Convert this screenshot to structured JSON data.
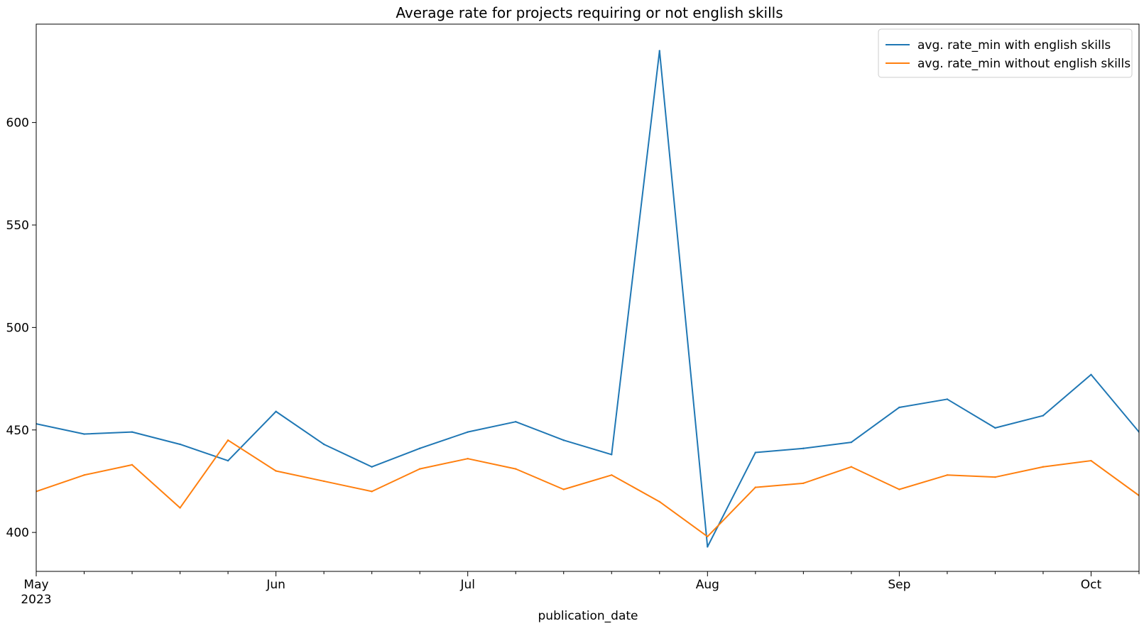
{
  "chart_data": {
    "type": "line",
    "title": "Average rate for projects requiring or not english skills",
    "xlabel": "publication_date",
    "ylabel": "",
    "x": [
      "2023-05-01",
      "2023-05-08",
      "2023-05-15",
      "2023-05-22",
      "2023-05-29",
      "2023-06-05",
      "2023-06-12",
      "2023-06-19",
      "2023-06-26",
      "2023-07-03",
      "2023-07-10",
      "2023-07-17",
      "2023-07-24",
      "2023-07-31",
      "2023-08-07",
      "2023-08-14",
      "2023-08-21",
      "2023-08-28",
      "2023-09-04",
      "2023-09-11",
      "2023-09-18",
      "2023-09-25",
      "2023-10-02",
      "2023-10-09"
    ],
    "xlim": [
      "2023-05-01",
      "2023-10-09"
    ],
    "ylim": [
      381,
      648
    ],
    "yticks": [
      400,
      450,
      500,
      550,
      600
    ],
    "xticks_major": [
      {
        "date": "2023-05-01",
        "label": "May",
        "sublabel": "2023"
      },
      {
        "date": "2023-06-05",
        "label": "Jun",
        "sublabel": ""
      },
      {
        "date": "2023-07-03",
        "label": "Jul",
        "sublabel": ""
      },
      {
        "date": "2023-08-07",
        "label": "Aug",
        "sublabel": ""
      },
      {
        "date": "2023-09-04",
        "label": "Sep",
        "sublabel": ""
      },
      {
        "date": "2023-10-02",
        "label": "Oct",
        "sublabel": ""
      }
    ],
    "xticks_minor": [
      "2023-05-08",
      "2023-05-15",
      "2023-05-22",
      "2023-05-29",
      "2023-06-12",
      "2023-06-19",
      "2023-06-26",
      "2023-07-10",
      "2023-07-17",
      "2023-07-24",
      "2023-07-31",
      "2023-08-14",
      "2023-08-21",
      "2023-08-28",
      "2023-09-11",
      "2023-09-18",
      "2023-09-25",
      "2023-10-09"
    ],
    "legend_position": "top-right",
    "grid": false,
    "series": [
      {
        "name": "avg. rate_min with english skills",
        "color": "#1f77b4",
        "values": [
          453,
          448,
          449,
          443,
          435,
          459,
          443,
          432,
          441,
          449,
          454,
          445,
          438,
          635,
          393,
          439,
          441,
          444,
          461,
          465,
          451,
          457,
          477,
          449
        ]
      },
      {
        "name": "avg. rate_min without english skills",
        "color": "#ff7f0e",
        "values": [
          420,
          428,
          433,
          412,
          445,
          430,
          425,
          420,
          431,
          436,
          431,
          421,
          428,
          415,
          398,
          422,
          424,
          432,
          421,
          428,
          427,
          432,
          435,
          418
        ]
      }
    ]
  }
}
